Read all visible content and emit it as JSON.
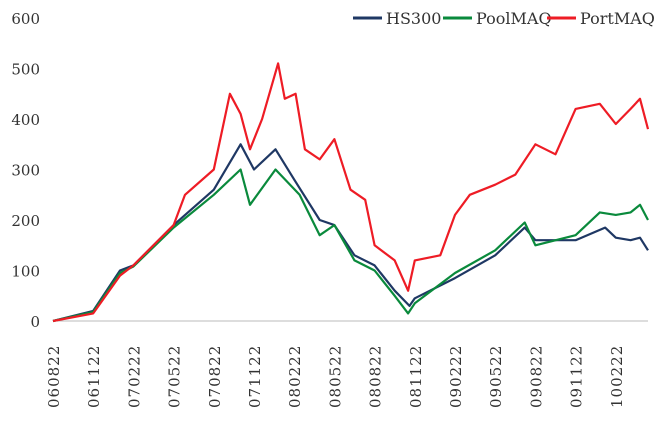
{
  "chart_data": {
    "type": "line",
    "title": "",
    "xlabel": "",
    "ylabel": "",
    "ylim": [
      0,
      600
    ],
    "yticks": [
      "0",
      "100",
      "200",
      "300",
      "400",
      "500",
      "600"
    ],
    "x_unit": "months since 060822",
    "xlim": [
      0,
      44.4
    ],
    "xticks": [
      {
        "label": "060822",
        "x": 0
      },
      {
        "label": "061122",
        "x": 3
      },
      {
        "label": "070222",
        "x": 6
      },
      {
        "label": "070522",
        "x": 9
      },
      {
        "label": "070822",
        "x": 12
      },
      {
        "label": "071122",
        "x": 15
      },
      {
        "label": "080222",
        "x": 18
      },
      {
        "label": "080522",
        "x": 21
      },
      {
        "label": "080822",
        "x": 24
      },
      {
        "label": "081122",
        "x": 27
      },
      {
        "label": "090222",
        "x": 30
      },
      {
        "label": "090522",
        "x": 33
      },
      {
        "label": "090822",
        "x": 36
      },
      {
        "label": "091122",
        "x": 39
      },
      {
        "label": "100222",
        "x": 42
      }
    ],
    "grid": false,
    "legend_position": "top-right",
    "series": [
      {
        "name": "HS300",
        "color": "#1f3864",
        "points": [
          [
            0,
            0
          ],
          [
            3,
            20
          ],
          [
            5,
            100
          ],
          [
            6,
            110
          ],
          [
            9,
            190
          ],
          [
            12,
            260
          ],
          [
            14,
            350
          ],
          [
            15,
            300
          ],
          [
            16.6,
            340
          ],
          [
            18,
            280
          ],
          [
            19.9,
            200
          ],
          [
            21,
            190
          ],
          [
            22.5,
            130
          ],
          [
            24,
            110
          ],
          [
            25.5,
            60
          ],
          [
            26.6,
            30
          ],
          [
            27,
            45
          ],
          [
            30,
            85
          ],
          [
            33,
            130
          ],
          [
            35.2,
            185
          ],
          [
            36,
            160
          ],
          [
            39,
            160
          ],
          [
            41.2,
            185
          ],
          [
            42,
            165
          ],
          [
            43.1,
            160
          ],
          [
            43.8,
            165
          ],
          [
            44.4,
            140
          ]
        ]
      },
      {
        "name": "PoolMAQ",
        "color": "#0a8a3c",
        "points": [
          [
            0,
            0
          ],
          [
            3,
            18
          ],
          [
            5,
            95
          ],
          [
            6,
            108
          ],
          [
            9,
            185
          ],
          [
            12,
            250
          ],
          [
            14,
            300
          ],
          [
            14.7,
            230
          ],
          [
            16.6,
            300
          ],
          [
            18.4,
            250
          ],
          [
            19.9,
            170
          ],
          [
            21,
            190
          ],
          [
            22.5,
            120
          ],
          [
            24,
            100
          ],
          [
            25.5,
            50
          ],
          [
            26.5,
            15
          ],
          [
            27,
            35
          ],
          [
            30,
            95
          ],
          [
            33,
            140
          ],
          [
            35.2,
            195
          ],
          [
            36,
            150
          ],
          [
            39,
            170
          ],
          [
            40.8,
            215
          ],
          [
            42,
            210
          ],
          [
            43.1,
            215
          ],
          [
            43.8,
            230
          ],
          [
            44.4,
            200
          ]
        ]
      },
      {
        "name": "PortMAQ",
        "color": "#ee1c25",
        "points": [
          [
            0,
            0
          ],
          [
            3,
            15
          ],
          [
            5,
            90
          ],
          [
            6,
            110
          ],
          [
            9,
            190
          ],
          [
            9.85,
            250
          ],
          [
            12,
            300
          ],
          [
            13.2,
            450
          ],
          [
            14,
            410
          ],
          [
            14.7,
            340
          ],
          [
            15.6,
            400
          ],
          [
            16.8,
            510
          ],
          [
            17.3,
            440
          ],
          [
            18.1,
            450
          ],
          [
            18.8,
            340
          ],
          [
            19.9,
            320
          ],
          [
            21,
            360
          ],
          [
            22.2,
            260
          ],
          [
            23.3,
            240
          ],
          [
            24,
            150
          ],
          [
            25.5,
            120
          ],
          [
            26.5,
            60
          ],
          [
            27,
            120
          ],
          [
            28.9,
            130
          ],
          [
            30,
            210
          ],
          [
            31.1,
            250
          ],
          [
            33,
            270
          ],
          [
            34.5,
            290
          ],
          [
            36,
            350
          ],
          [
            37.5,
            330
          ],
          [
            39,
            420
          ],
          [
            40.8,
            430
          ],
          [
            42,
            390
          ],
          [
            43.1,
            420
          ],
          [
            43.8,
            440
          ],
          [
            44.4,
            380
          ]
        ]
      }
    ]
  }
}
